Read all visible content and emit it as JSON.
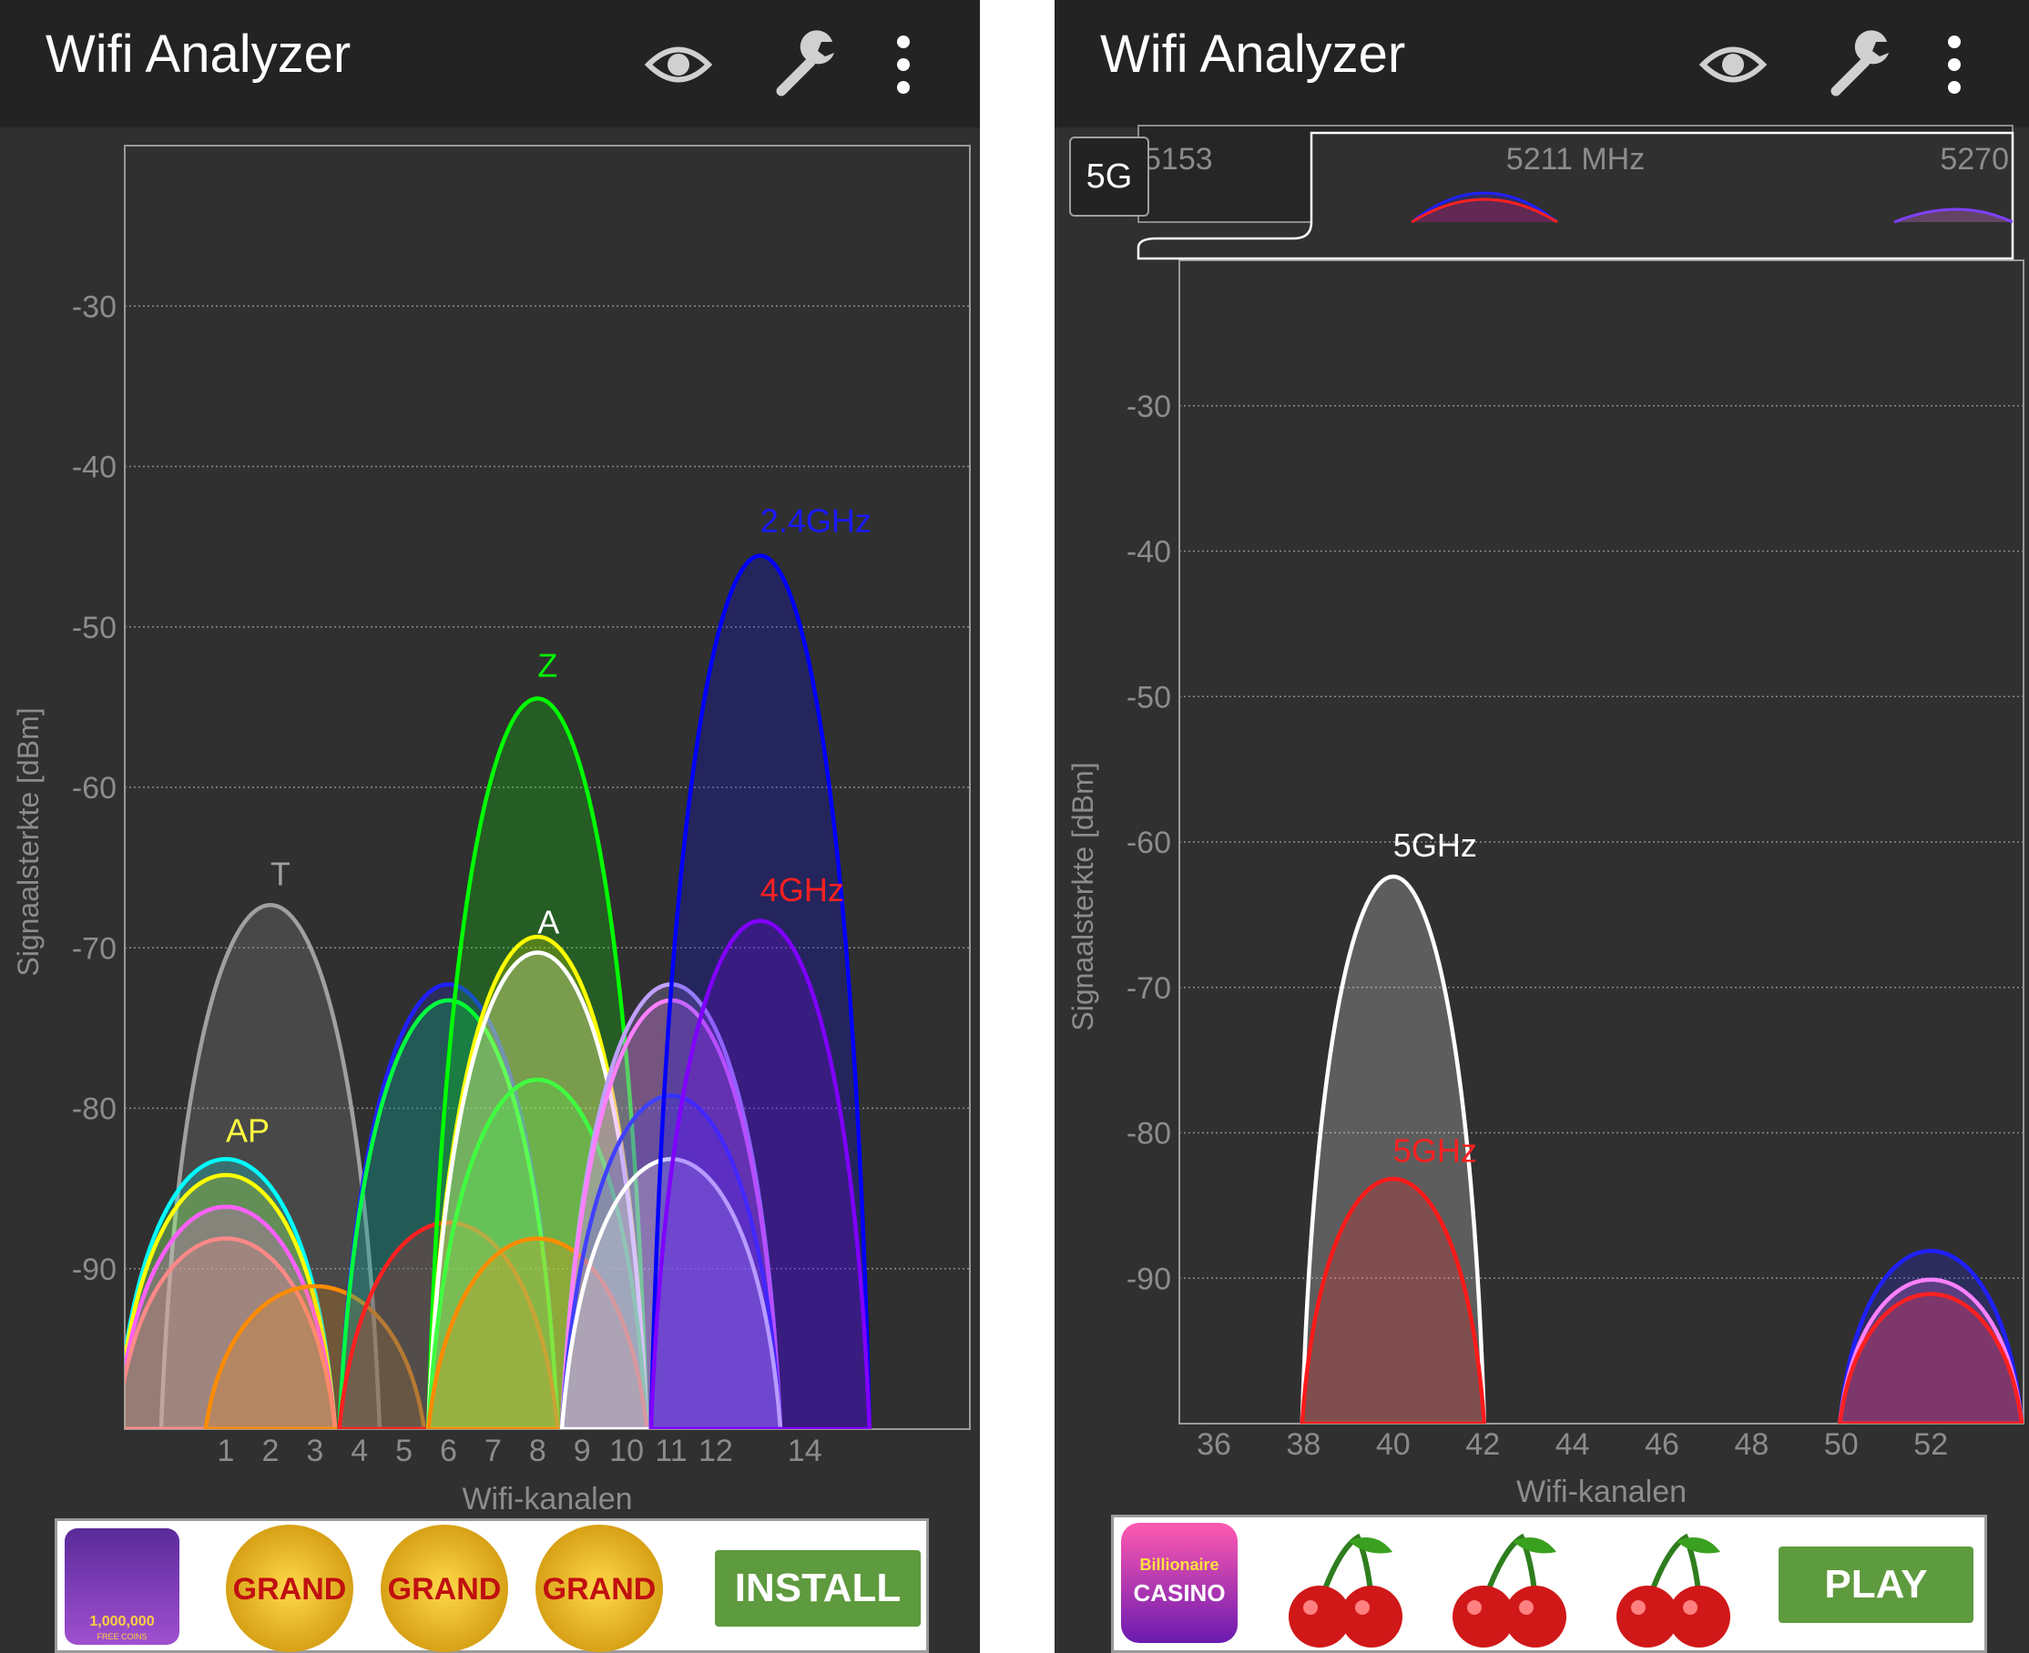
{
  "panels": [
    {
      "app_title": "Wifi Analyzer",
      "band_badge": "",
      "icons": {
        "eye": "eye-icon",
        "wrench": "wrench-icon",
        "menu": "more-vert-icon"
      },
      "ad": {
        "button_label": "INSTALL",
        "tile_text": "GRAND",
        "coins_text": "1,000,000",
        "coins_sub": "FREE COINS"
      },
      "chart_data": {
        "type": "area",
        "xlabel": "Wifi-kanalen",
        "ylabel": "Signaalsterkte [dBm]",
        "ylim": [
          -100,
          -20
        ],
        "y_ticks": [
          -30,
          -40,
          -50,
          -60,
          -70,
          -80,
          -90
        ],
        "x_ticks": [
          {
            "label": "1",
            "ch": 1
          },
          {
            "label": "2",
            "ch": 2
          },
          {
            "label": "3",
            "ch": 3
          },
          {
            "label": "4",
            "ch": 4
          },
          {
            "label": "5",
            "ch": 5
          },
          {
            "label": "6",
            "ch": 6
          },
          {
            "label": "7",
            "ch": 7
          },
          {
            "label": "8",
            "ch": 8
          },
          {
            "label": "9",
            "ch": 9
          },
          {
            "label": "10",
            "ch": 10
          },
          {
            "label": "11",
            "ch": 11
          },
          {
            "label": "12",
            "ch": 12
          },
          {
            "label": "14",
            "ch": 14
          }
        ],
        "grid": true,
        "series": [
          {
            "center": 2,
            "dbm": -67,
            "color": "#a0a0a0",
            "label": "T",
            "label_color": "#a0a0a0"
          },
          {
            "center": 1,
            "dbm": -83,
            "color": "#00ffff",
            "label": "AP",
            "label_color": "#ffff40"
          },
          {
            "center": 1,
            "dbm": -84,
            "color": "#ffff00",
            "label": "",
            "label_color": "#ffff00"
          },
          {
            "center": 1,
            "dbm": -86,
            "color": "#ff60ff",
            "label": "",
            "label_color": "#ff60ff"
          },
          {
            "center": 1,
            "dbm": -88,
            "color": "#ff8888",
            "label": "",
            "label_color": "#ff8888"
          },
          {
            "center": 3,
            "dbm": -91,
            "color": "#ff8c00",
            "label": "",
            "label_color": "#ff8c00"
          },
          {
            "center": 6,
            "dbm": -72,
            "color": "#2020ff",
            "label": "",
            "label_color": "#2020ff"
          },
          {
            "center": 6,
            "dbm": -73,
            "color": "#00ff40",
            "label": "",
            "label_color": "#00ff40"
          },
          {
            "center": 6,
            "dbm": -87,
            "color": "#ff2020",
            "label": "",
            "label_color": "#ff2020"
          },
          {
            "center": 8,
            "dbm": -54,
            "color": "#00ff00",
            "label": "Z",
            "label_color": "#00ff00"
          },
          {
            "center": 8,
            "dbm": -69,
            "color": "#ffff00",
            "label": "",
            "label_color": "#ffff00"
          },
          {
            "center": 8,
            "dbm": -70,
            "color": "#ffffff",
            "label": "A",
            "label_color": "#ffffff"
          },
          {
            "center": 8,
            "dbm": -78,
            "color": "#40ff40",
            "label": "",
            "label_color": "#40ff40"
          },
          {
            "center": 8,
            "dbm": -88,
            "color": "#ff8c00",
            "label": "",
            "label_color": "#ff8c00"
          },
          {
            "center": 11,
            "dbm": -72,
            "color": "#c0a0ff",
            "label": "",
            "label_color": "#c0a0ff"
          },
          {
            "center": 11,
            "dbm": -73,
            "color": "#ff80ff",
            "label": "",
            "label_color": "#ff80ff"
          },
          {
            "center": 11,
            "dbm": -79,
            "color": "#4040ff",
            "label": "",
            "label_color": "#4040ff"
          },
          {
            "center": 11,
            "dbm": -83,
            "color": "#ffffff",
            "label": "",
            "label_color": "#ffffff"
          },
          {
            "center": 13,
            "dbm": -45,
            "color": "#0000ff",
            "label": "2.4GHz",
            "label_color": "#1a1aff"
          },
          {
            "center": 13,
            "dbm": -68,
            "color": "#8000ff",
            "label": "4GHz",
            "label_color": "#ff2020"
          }
        ]
      }
    },
    {
      "app_title": "Wifi Analyzer",
      "band_badge": "5G",
      "icons": {
        "eye": "eye-icon",
        "wrench": "wrench-icon",
        "menu": "more-vert-icon"
      },
      "ad": {
        "button_label": "PLAY",
        "logo_line1": "Billionaire",
        "logo_line2": "CASINO"
      },
      "overview": {
        "freq_left": "5153",
        "freq_mid": "5211 MHz",
        "freq_right": "5270"
      },
      "chart_data": {
        "type": "area",
        "xlabel": "Wifi-kanalen",
        "ylabel": "Signaalsterkte [dBm]",
        "ylim": [
          -100,
          -20
        ],
        "y_ticks": [
          -30,
          -40,
          -50,
          -60,
          -70,
          -80,
          -90
        ],
        "x_ticks": [
          {
            "label": "36",
            "ch": 36
          },
          {
            "label": "38",
            "ch": 38
          },
          {
            "label": "40",
            "ch": 40
          },
          {
            "label": "42",
            "ch": 42
          },
          {
            "label": "44",
            "ch": 44
          },
          {
            "label": "46",
            "ch": 46
          },
          {
            "label": "48",
            "ch": 48
          },
          {
            "label": "50",
            "ch": 50
          },
          {
            "label": "52",
            "ch": 52
          }
        ],
        "grid": true,
        "series": [
          {
            "center": 40,
            "dbm": -62,
            "color": "#ffffff",
            "label": "5GHz",
            "label_color": "#ffffff"
          },
          {
            "center": 40,
            "dbm": -83,
            "color": "#ff1a1a",
            "label": "5GHz",
            "label_color": "#ff2020"
          },
          {
            "center": 52,
            "dbm": -88,
            "color": "#2020ff",
            "label": "",
            "label_color": "#2020ff"
          },
          {
            "center": 52,
            "dbm": -90,
            "color": "#ff80ff",
            "label": "",
            "label_color": "#ff80ff"
          },
          {
            "center": 52,
            "dbm": -91,
            "color": "#ff2020",
            "label": "",
            "label_color": "#ff2020"
          }
        ]
      }
    }
  ]
}
